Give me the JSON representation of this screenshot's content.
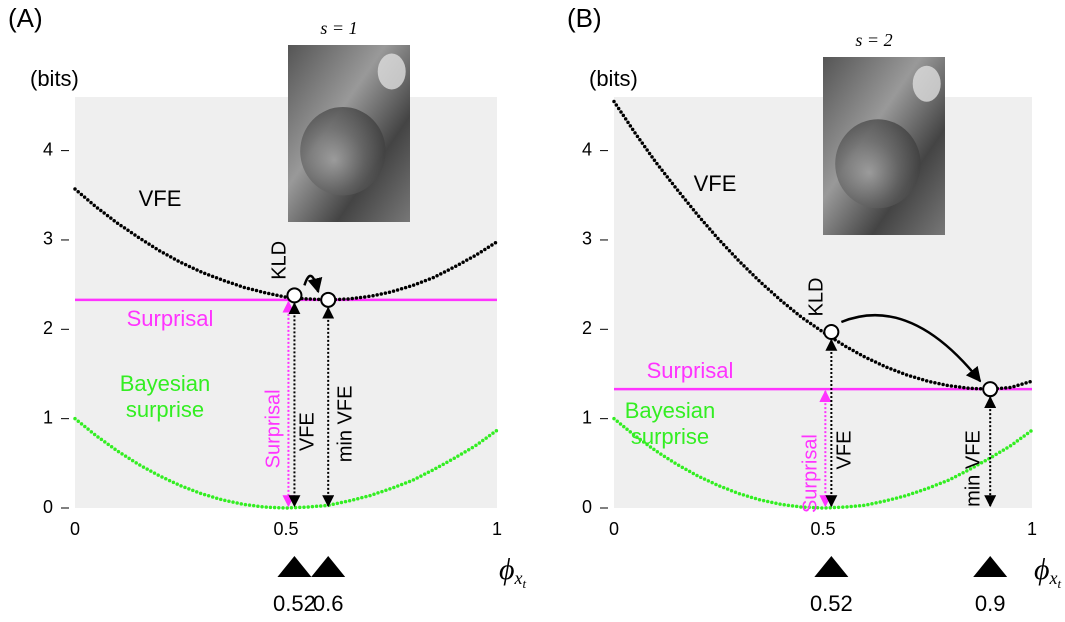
{
  "chart_data": [
    {
      "type": "line",
      "panel": "(A)",
      "ylabel": "(bits)",
      "image_caption": "s = 1",
      "xlabel": "ϕ",
      "xlabel_sub": "x",
      "xlabel_subsub": "t",
      "xlim": [
        0,
        1
      ],
      "ylim": [
        0,
        4.6
      ],
      "xticks": [
        0,
        0.5,
        1
      ],
      "yticks": [
        0,
        1,
        2,
        3,
        4
      ],
      "x": [
        0,
        0.05,
        0.1,
        0.15,
        0.2,
        0.25,
        0.3,
        0.35,
        0.4,
        0.45,
        0.5,
        0.55,
        0.6,
        0.65,
        0.7,
        0.75,
        0.8,
        0.85,
        0.9,
        0.95,
        1
      ],
      "series": [
        {
          "name": "VFE",
          "color": "#000000",
          "values": [
            3.57,
            3.37,
            3.19,
            3.03,
            2.88,
            2.75,
            2.64,
            2.55,
            2.47,
            2.41,
            2.36,
            2.34,
            2.33,
            2.34,
            2.37,
            2.42,
            2.49,
            2.58,
            2.7,
            2.83,
            2.98
          ]
        },
        {
          "label_lines": [
            "Bayesian",
            "surprise"
          ],
          "color": "#33ee22",
          "values": [
            1.0,
            0.81,
            0.64,
            0.49,
            0.36,
            0.25,
            0.16,
            0.09,
            0.04,
            0.01,
            0,
            0.01,
            0.03,
            0.08,
            0.14,
            0.22,
            0.31,
            0.43,
            0.56,
            0.7,
            0.87
          ]
        }
      ],
      "reference_line": {
        "name": "Surprisal",
        "value": 2.33,
        "color": "#ff33ff"
      },
      "circles": [
        {
          "x": 0.52,
          "y": 2.38
        },
        {
          "x": 0.6,
          "y": 2.33
        }
      ],
      "annotations": {
        "kld": "KLD",
        "surprisal_vertical": "Surprisal",
        "vfe_vertical": "VFE",
        "min_vfe": "min VFE"
      },
      "markers": [
        0.52,
        0.6
      ]
    },
    {
      "type": "line",
      "panel": "(B)",
      "ylabel": "(bits)",
      "image_caption": "s = 2",
      "xlabel": "ϕ",
      "xlabel_sub": "x",
      "xlabel_subsub": "t",
      "xlim": [
        0,
        1
      ],
      "ylim": [
        0,
        4.6
      ],
      "xticks": [
        0,
        0.5,
        1
      ],
      "yticks": [
        0,
        1,
        2,
        3,
        4
      ],
      "x": [
        0,
        0.05,
        0.1,
        0.15,
        0.2,
        0.25,
        0.3,
        0.35,
        0.4,
        0.45,
        0.5,
        0.55,
        0.6,
        0.65,
        0.7,
        0.75,
        0.8,
        0.85,
        0.9,
        0.95,
        1
      ],
      "series": [
        {
          "name": "VFE",
          "color": "#000000",
          "values": [
            4.55,
            4.2,
            3.87,
            3.57,
            3.28,
            3.01,
            2.76,
            2.53,
            2.32,
            2.13,
            1.97,
            1.82,
            1.69,
            1.58,
            1.49,
            1.42,
            1.37,
            1.34,
            1.33,
            1.35,
            1.42
          ]
        },
        {
          "label_lines": [
            "Bayesian",
            "surprise"
          ],
          "color": "#33ee22",
          "values": [
            1.0,
            0.81,
            0.64,
            0.49,
            0.36,
            0.25,
            0.16,
            0.09,
            0.04,
            0.01,
            0,
            0.01,
            0.03,
            0.08,
            0.14,
            0.22,
            0.31,
            0.43,
            0.56,
            0.7,
            0.87
          ]
        }
      ],
      "reference_line": {
        "name": "Surprisal",
        "value": 1.33,
        "color": "#ff33ff"
      },
      "circles": [
        {
          "x": 0.52,
          "y": 1.97
        },
        {
          "x": 0.9,
          "y": 1.33
        }
      ],
      "annotations": {
        "kld": "KLD",
        "surprisal_vertical": "Surprisal",
        "vfe_vertical": "VFE",
        "min_vfe": "min VFE"
      },
      "markers": [
        0.52,
        0.9
      ]
    }
  ]
}
